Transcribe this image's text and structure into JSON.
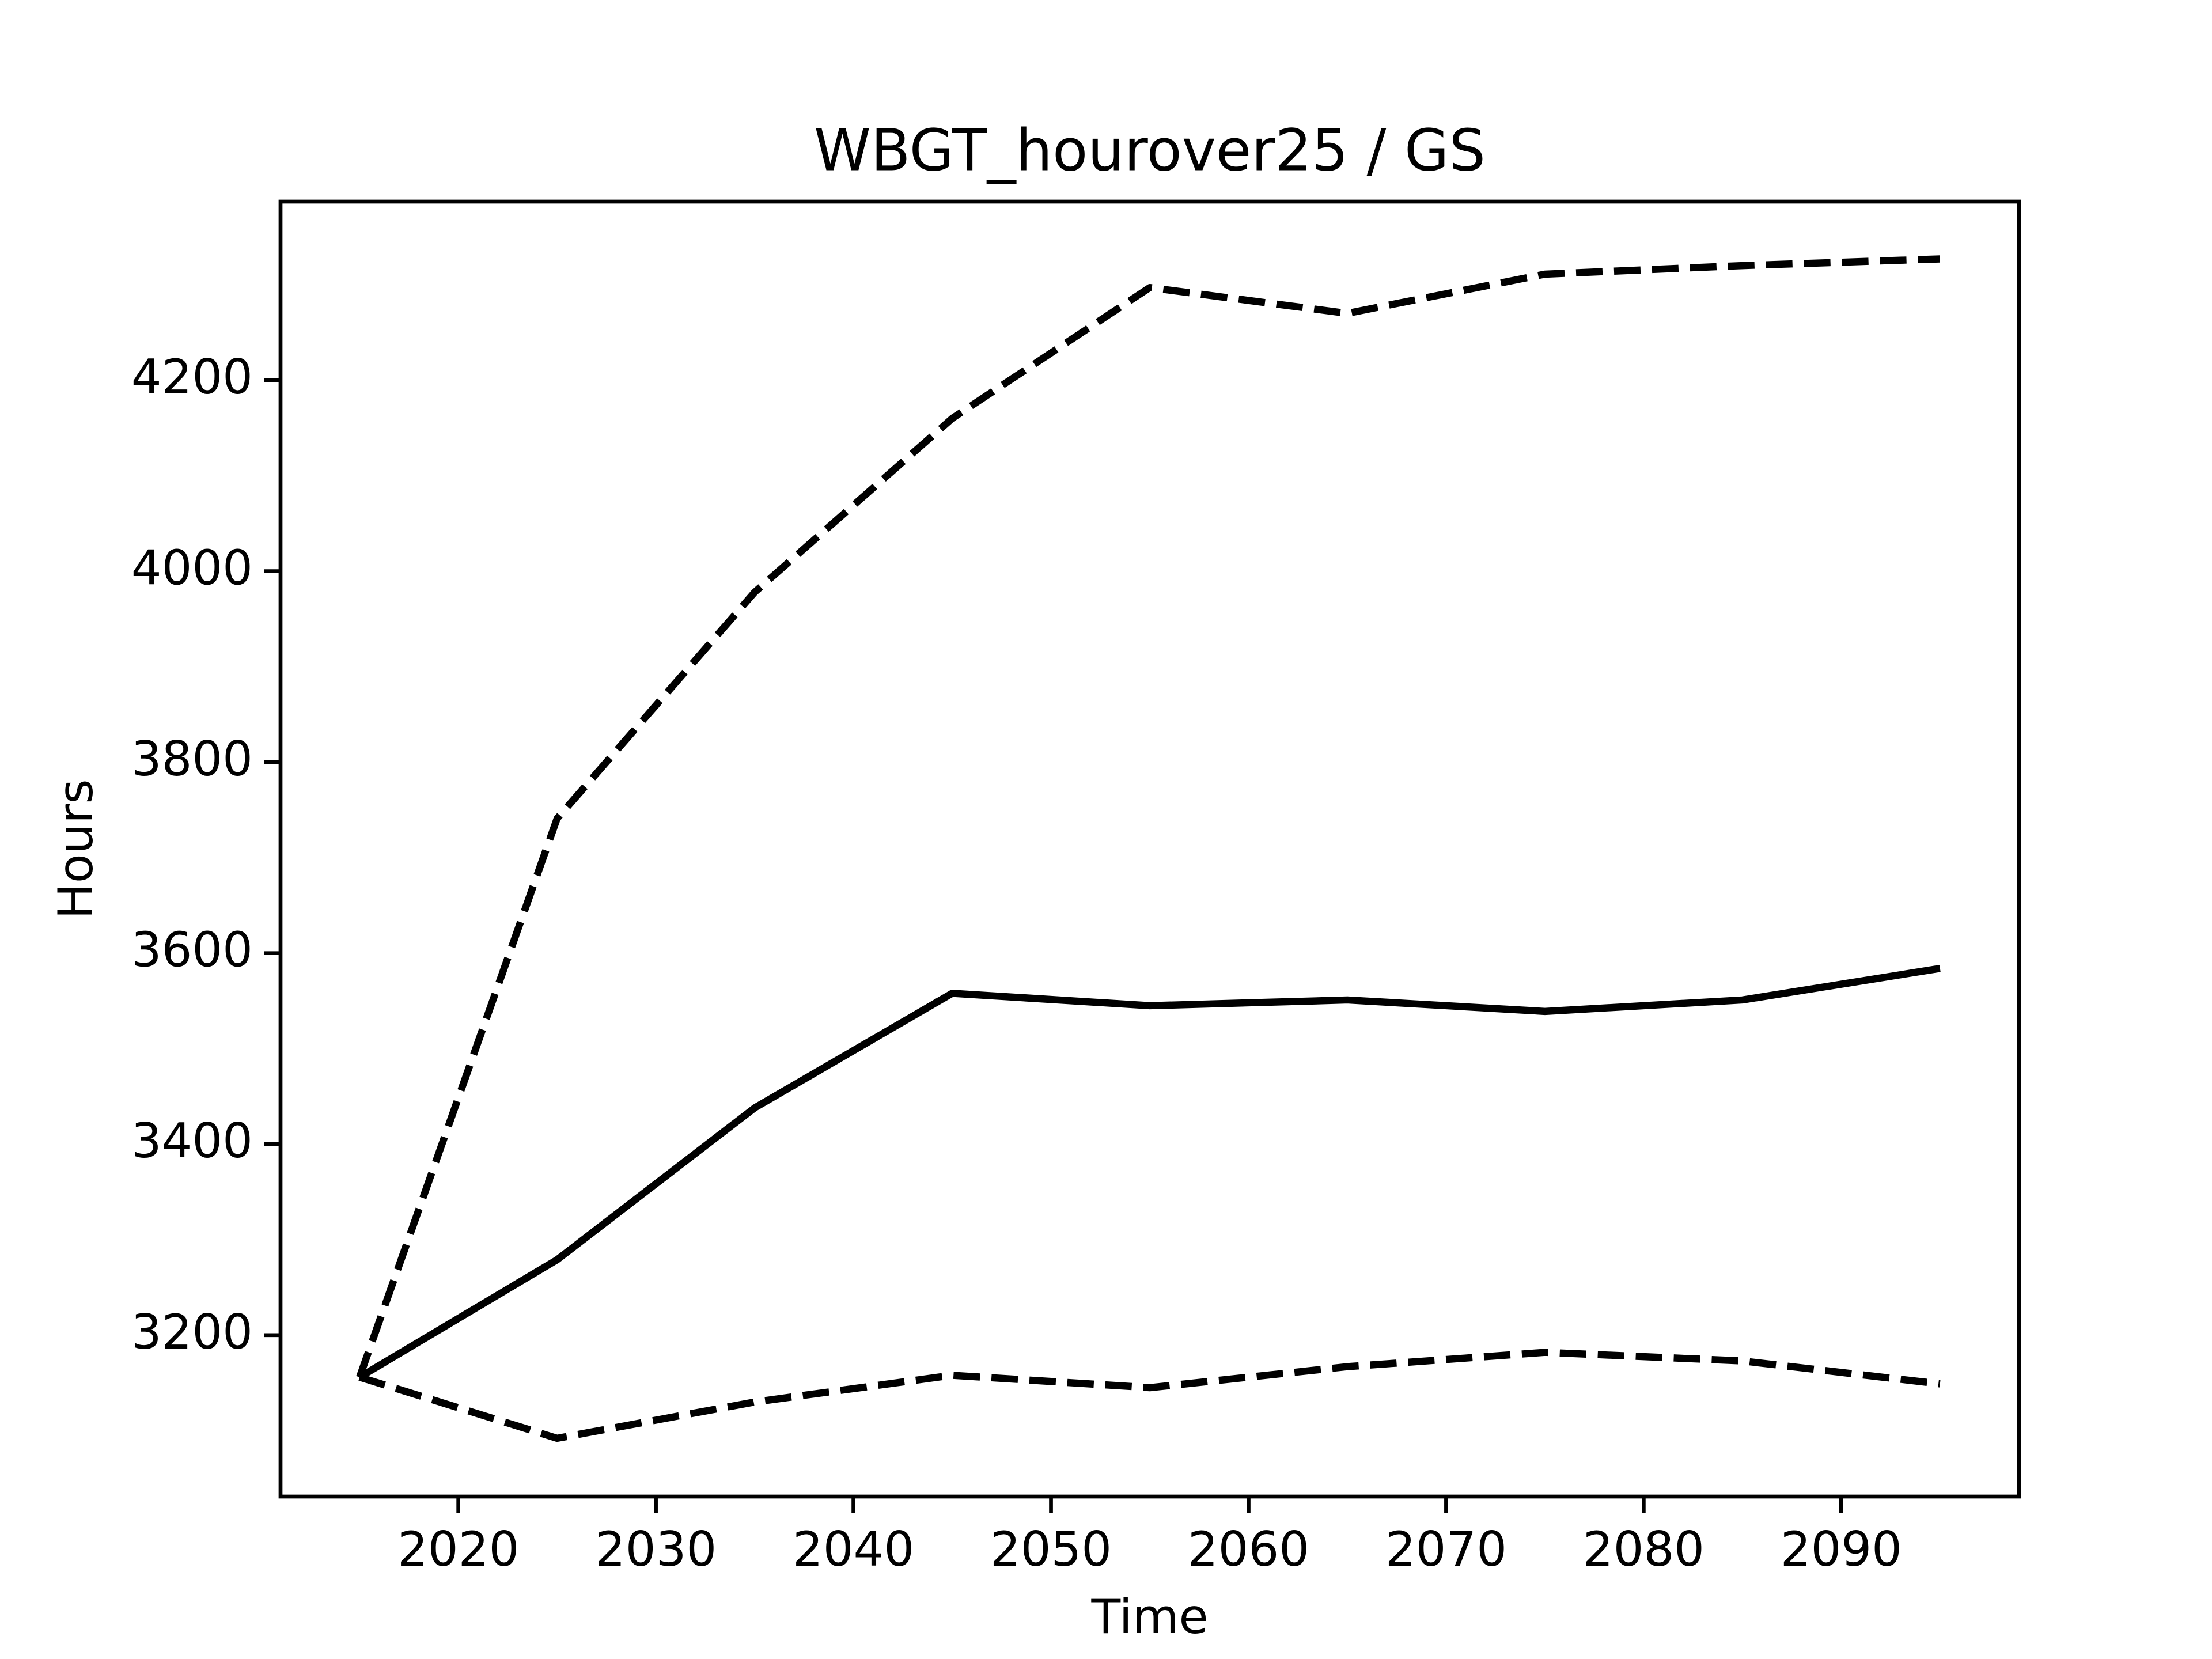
{
  "chart_data": {
    "type": "line",
    "title": "WBGT_hourover25 / GS",
    "xlabel": "Time",
    "ylabel": "Hours",
    "x": [
      2015,
      2025,
      2035,
      2045,
      2055,
      2065,
      2075,
      2085,
      2095
    ],
    "series": [
      {
        "color": "#000000",
        "linestyle": "solid",
        "values": [
          3156,
          3279,
          3438,
          3558,
          3545,
          3551,
          3539,
          3551,
          3584
        ]
      },
      {
        "color": "#000000",
        "linestyle": "dashed",
        "values": [
          3156,
          3741,
          3978,
          4160,
          4297,
          4270,
          4311,
          4320,
          4327
        ]
      },
      {
        "color": "#000000",
        "linestyle": "dashed",
        "values": [
          3156,
          3092,
          3130,
          3158,
          3145,
          3167,
          3182,
          3173,
          3149
        ]
      }
    ],
    "xlim": [
      2011,
      2099
    ],
    "xticks": [
      2020,
      2030,
      2040,
      2050,
      2060,
      2070,
      2080,
      2090
    ],
    "ylim": [
      3031,
      4387
    ],
    "yticks": [
      3200,
      3400,
      3600,
      3800,
      4000,
      4200
    ],
    "grid": false
  }
}
